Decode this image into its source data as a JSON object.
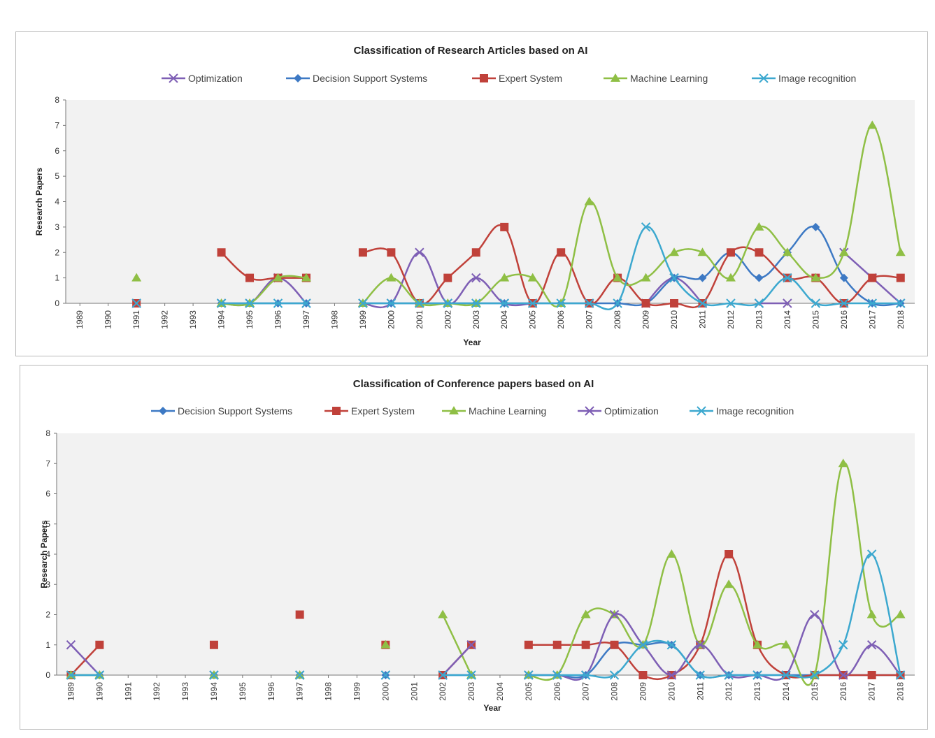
{
  "colors": {
    "Optimization": "#7e5fb5",
    "Decision Support Systems": "#3d79c4",
    "Expert System": "#c0413a",
    "Machine Learning": "#8fbf45",
    "Image recognition": "#3ca8cf"
  },
  "chart_data": [
    {
      "type": "line",
      "title": "Classification of Research Articles based on AI",
      "xlabel": "Year",
      "ylabel": "Research Papers",
      "ylim": [
        0,
        8
      ],
      "yticks": [
        0,
        1,
        2,
        3,
        4,
        5,
        6,
        7,
        8
      ],
      "categories": [
        "1989",
        "1990",
        "1991",
        "1992",
        "1993",
        "1994",
        "1995",
        "1996",
        "1997",
        "1998",
        "1999",
        "2000",
        "2001",
        "2002",
        "2003",
        "2004",
        "2005",
        "2006",
        "2007",
        "2008",
        "2009",
        "2010",
        "2011",
        "2012",
        "2013",
        "2014",
        "2015",
        "2016",
        "2017",
        "2018"
      ],
      "legend_position": "top",
      "grid": false,
      "series": [
        {
          "name": "Optimization",
          "marker": "x",
          "values": [
            null,
            null,
            0,
            null,
            null,
            0,
            0,
            1,
            0,
            null,
            0,
            0,
            2,
            0,
            1,
            0,
            0,
            null,
            0,
            null,
            0,
            1,
            0,
            null,
            0,
            0,
            null,
            2,
            1,
            0
          ]
        },
        {
          "name": "Decision Support Systems",
          "marker": "diamond",
          "values": [
            null,
            null,
            0,
            null,
            null,
            0,
            0,
            0,
            0,
            null,
            0,
            0,
            0,
            0,
            0,
            0,
            0,
            0,
            0,
            0,
            0,
            1,
            1,
            2,
            1,
            2,
            3,
            1,
            0,
            0
          ]
        },
        {
          "name": "Expert System",
          "marker": "square",
          "values": [
            null,
            null,
            0,
            null,
            null,
            2,
            1,
            1,
            1,
            null,
            2,
            2,
            0,
            1,
            2,
            3,
            0,
            2,
            0,
            1,
            0,
            0,
            0,
            2,
            2,
            1,
            1,
            0,
            1,
            1
          ]
        },
        {
          "name": "Machine Learning",
          "marker": "triangle",
          "values": [
            null,
            null,
            1,
            null,
            null,
            0,
            0,
            1,
            1,
            null,
            0,
            1,
            0,
            0,
            0,
            1,
            1,
            0,
            4,
            1,
            1,
            2,
            2,
            1,
            3,
            2,
            1,
            2,
            7,
            2
          ]
        },
        {
          "name": "Image recognition",
          "marker": "x",
          "values": [
            null,
            null,
            0,
            null,
            null,
            0,
            0,
            0,
            0,
            null,
            0,
            0,
            0,
            0,
            0,
            0,
            0,
            0,
            0,
            0,
            3,
            1,
            0,
            0,
            0,
            1,
            0,
            0,
            0,
            0
          ]
        }
      ]
    },
    {
      "type": "line",
      "title": "Classification of Conference papers based on AI",
      "xlabel": "Year",
      "ylabel": "Research Papers",
      "ylim": [
        0,
        8
      ],
      "yticks": [
        0,
        1,
        2,
        3,
        4,
        5,
        6,
        7,
        8
      ],
      "categories": [
        "1989",
        "1990",
        "1991",
        "1992",
        "1993",
        "1994",
        "1995",
        "1996",
        "1997",
        "1998",
        "1999",
        "2000",
        "2001",
        "2002",
        "2003",
        "2004",
        "2005",
        "2006",
        "2007",
        "2008",
        "2009",
        "2010",
        "2011",
        "2012",
        "2013",
        "2014",
        "2015",
        "2016",
        "2017",
        "2018"
      ],
      "legend_position": "top",
      "grid": false,
      "series": [
        {
          "name": "Decision Support Systems",
          "marker": "diamond",
          "values": [
            0,
            0,
            null,
            null,
            null,
            0,
            null,
            null,
            0,
            null,
            null,
            0,
            null,
            0,
            0,
            null,
            0,
            0,
            0,
            1,
            1,
            1,
            0,
            0,
            0,
            0,
            0,
            0,
            0,
            0
          ]
        },
        {
          "name": "Expert System",
          "marker": "square",
          "values": [
            0,
            1,
            null,
            null,
            null,
            1,
            null,
            null,
            2,
            null,
            null,
            1,
            null,
            0,
            1,
            null,
            1,
            1,
            1,
            1,
            0,
            0,
            1,
            4,
            1,
            0,
            0,
            0,
            0,
            0
          ]
        },
        {
          "name": "Machine Learning",
          "marker": "triangle",
          "values": [
            0,
            0,
            null,
            null,
            null,
            0,
            null,
            null,
            0,
            null,
            null,
            1,
            null,
            2,
            0,
            null,
            0,
            0,
            2,
            2,
            1,
            4,
            1,
            3,
            1,
            1,
            0,
            7,
            2,
            2
          ]
        },
        {
          "name": "Optimization",
          "marker": "x",
          "values": [
            1,
            0,
            null,
            null,
            null,
            0,
            null,
            null,
            0,
            null,
            null,
            0,
            null,
            0,
            1,
            null,
            0,
            0,
            0,
            2,
            1,
            0,
            1,
            0,
            0,
            0,
            2,
            0,
            1,
            0
          ]
        },
        {
          "name": "Image recognition",
          "marker": "x",
          "values": [
            0,
            0,
            null,
            null,
            null,
            0,
            null,
            null,
            0,
            null,
            null,
            0,
            null,
            0,
            0,
            null,
            0,
            0,
            0,
            0,
            1,
            1,
            0,
            0,
            0,
            0,
            0,
            1,
            4,
            0
          ]
        }
      ]
    }
  ]
}
